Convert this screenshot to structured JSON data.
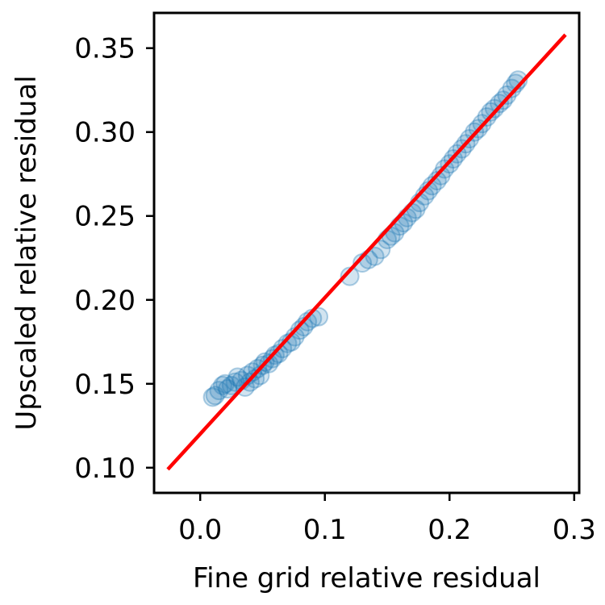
{
  "chart_data": {
    "type": "scatter",
    "title": "",
    "xlabel": "Fine grid relative residual",
    "ylabel": "Upscaled relative residual",
    "xlim": [
      -0.037,
      0.304
    ],
    "ylim": [
      0.085,
      0.371
    ],
    "xticks": [
      0.0,
      0.1,
      0.2,
      0.3
    ],
    "xtick_labels": [
      "0.0",
      "0.1",
      "0.2",
      "0.3"
    ],
    "yticks": [
      0.1,
      0.15,
      0.2,
      0.25,
      0.3,
      0.35
    ],
    "ytick_labels": [
      "0.10",
      "0.15",
      "0.20",
      "0.25",
      "0.30",
      "0.35"
    ],
    "grid": false,
    "legend": "none",
    "colors": {
      "points": "#1f77b4",
      "fit_line": "#ff0000",
      "axes": "#000000"
    },
    "series": [
      {
        "kind": "scatter",
        "alpha": 0.2,
        "x": [
          0.01,
          0.012,
          0.015,
          0.018,
          0.02,
          0.022,
          0.025,
          0.028,
          0.03,
          0.033,
          0.036,
          0.038,
          0.04,
          0.042,
          0.044,
          0.046,
          0.048,
          0.05,
          0.052,
          0.055,
          0.058,
          0.06,
          0.063,
          0.066,
          0.07,
          0.073,
          0.076,
          0.08,
          0.083,
          0.086,
          0.09,
          0.095,
          0.12,
          0.13,
          0.135,
          0.14,
          0.145,
          0.15,
          0.153,
          0.156,
          0.16,
          0.163,
          0.166,
          0.17,
          0.173,
          0.176,
          0.18,
          0.183,
          0.186,
          0.19,
          0.193,
          0.196,
          0.2,
          0.203,
          0.206,
          0.21,
          0.213,
          0.216,
          0.22,
          0.223,
          0.226,
          0.23,
          0.233,
          0.236,
          0.24,
          0.243,
          0.246,
          0.25,
          0.253,
          0.255
        ],
        "y": [
          0.142,
          0.143,
          0.146,
          0.149,
          0.15,
          0.147,
          0.149,
          0.151,
          0.154,
          0.152,
          0.148,
          0.155,
          0.151,
          0.157,
          0.153,
          0.159,
          0.155,
          0.161,
          0.163,
          0.162,
          0.165,
          0.167,
          0.168,
          0.171,
          0.174,
          0.175,
          0.178,
          0.182,
          0.184,
          0.187,
          0.189,
          0.19,
          0.214,
          0.222,
          0.224,
          0.226,
          0.23,
          0.236,
          0.238,
          0.24,
          0.244,
          0.246,
          0.249,
          0.252,
          0.254,
          0.258,
          0.262,
          0.265,
          0.268,
          0.271,
          0.274,
          0.278,
          0.281,
          0.284,
          0.287,
          0.29,
          0.293,
          0.296,
          0.3,
          0.302,
          0.305,
          0.309,
          0.312,
          0.314,
          0.317,
          0.319,
          0.322,
          0.326,
          0.329,
          0.331
        ]
      },
      {
        "kind": "line",
        "x": [
          -0.026,
          0.293
        ],
        "y": [
          0.099,
          0.358
        ]
      }
    ]
  }
}
